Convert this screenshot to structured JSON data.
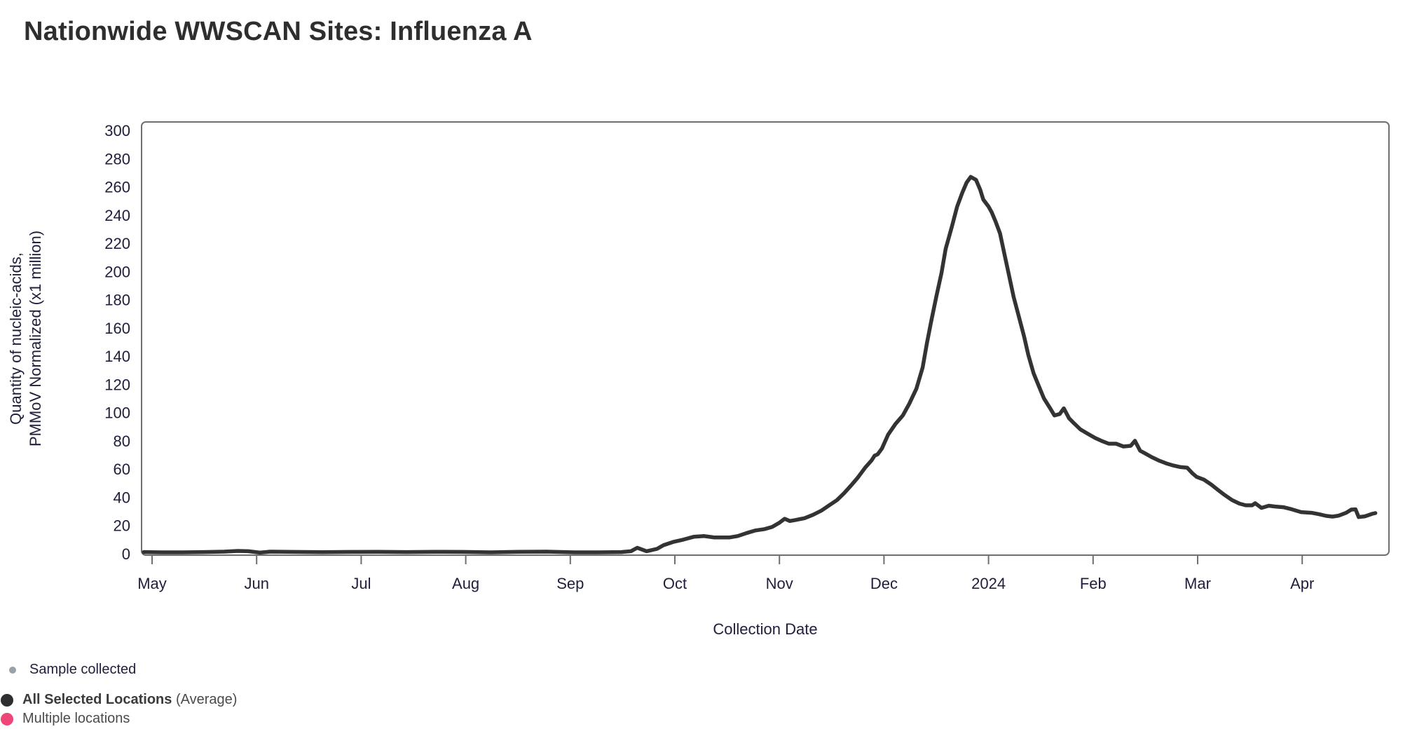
{
  "title": "Nationwide WWSCAN Sites: Influenza A",
  "chart_data": {
    "type": "line",
    "title": "Nationwide WWSCAN Sites: Influenza A",
    "xlabel": "Collection Date",
    "ylabel_lines": [
      "Quantity of nucleic-acids,",
      "PMMoV Normalized (x1 million)"
    ],
    "x_ticks": [
      "May",
      "Jun",
      "Jul",
      "Aug",
      "Sep",
      "Oct",
      "Nov",
      "Dec",
      "2024",
      "Feb",
      "Mar",
      "Apr"
    ],
    "y_ticks": [
      0,
      20,
      40,
      60,
      80,
      100,
      120,
      140,
      160,
      180,
      200,
      220,
      240,
      260,
      280,
      300
    ],
    "ylim": [
      0,
      300
    ],
    "x_note": "x values are fractional month offsets: 0 = May tick, 11 = Apr tick, '2024' tick (index 8) = January",
    "grid": false,
    "legend_position": "bottom-left",
    "series": [
      {
        "name": "All Selected Locations (Average)",
        "color": "#333333",
        "points": [
          [
            -0.08,
            1.2
          ],
          [
            0.09,
            1.0
          ],
          [
            0.29,
            1.0
          ],
          [
            0.49,
            1.2
          ],
          [
            0.69,
            1.5
          ],
          [
            0.82,
            2.0
          ],
          [
            0.92,
            1.8
          ],
          [
            1.03,
            0.8
          ],
          [
            1.13,
            1.5
          ],
          [
            1.36,
            1.3
          ],
          [
            1.63,
            1.1
          ],
          [
            1.9,
            1.3
          ],
          [
            2.16,
            1.4
          ],
          [
            2.43,
            1.2
          ],
          [
            2.7,
            1.4
          ],
          [
            2.97,
            1.3
          ],
          [
            3.24,
            1.0
          ],
          [
            3.5,
            1.4
          ],
          [
            3.77,
            1.5
          ],
          [
            4.04,
            1.0
          ],
          [
            4.26,
            1.0
          ],
          [
            4.49,
            1.2
          ],
          [
            4.58,
            1.8
          ],
          [
            4.64,
            4.2
          ],
          [
            4.73,
            1.8
          ],
          [
            4.83,
            3.5
          ],
          [
            4.89,
            6.0
          ],
          [
            4.99,
            8.5
          ],
          [
            5.08,
            10.0
          ],
          [
            5.18,
            12.0
          ],
          [
            5.28,
            12.5
          ],
          [
            5.38,
            11.5
          ],
          [
            5.52,
            11.5
          ],
          [
            5.6,
            12.5
          ],
          [
            5.68,
            14.5
          ],
          [
            5.77,
            16.5
          ],
          [
            5.86,
            17.5
          ],
          [
            5.93,
            19.0
          ],
          [
            6.0,
            22.0
          ],
          [
            6.05,
            24.8
          ],
          [
            6.1,
            23.2
          ],
          [
            6.16,
            24.0
          ],
          [
            6.24,
            25.2
          ],
          [
            6.32,
            27.5
          ],
          [
            6.4,
            30.5
          ],
          [
            6.48,
            34.5
          ],
          [
            6.55,
            38.0
          ],
          [
            6.62,
            43.0
          ],
          [
            6.68,
            48.0
          ],
          [
            6.75,
            54.0
          ],
          [
            6.82,
            61.0
          ],
          [
            6.88,
            66.0
          ],
          [
            6.91,
            69.5
          ],
          [
            6.94,
            70.5
          ],
          [
            6.98,
            74.5
          ],
          [
            7.04,
            84.5
          ],
          [
            7.11,
            92.0
          ],
          [
            7.18,
            98.0
          ],
          [
            7.24,
            106
          ],
          [
            7.31,
            117
          ],
          [
            7.37,
            132
          ],
          [
            7.41,
            149
          ],
          [
            7.45,
            164
          ],
          [
            7.5,
            182
          ],
          [
            7.55,
            199
          ],
          [
            7.59,
            216
          ],
          [
            7.65,
            232
          ],
          [
            7.7,
            246
          ],
          [
            7.75,
            256
          ],
          [
            7.79,
            263
          ],
          [
            7.83,
            267
          ],
          [
            7.88,
            265
          ],
          [
            7.92,
            258
          ],
          [
            7.95,
            251
          ],
          [
            8.0,
            246
          ],
          [
            8.03,
            242
          ],
          [
            8.07,
            235
          ],
          [
            8.11,
            227
          ],
          [
            8.15,
            213
          ],
          [
            8.2,
            196
          ],
          [
            8.24,
            182
          ],
          [
            8.29,
            168
          ],
          [
            8.34,
            154
          ],
          [
            8.38,
            141
          ],
          [
            8.43,
            128
          ],
          [
            8.48,
            119
          ],
          [
            8.53,
            110
          ],
          [
            8.59,
            103
          ],
          [
            8.63,
            98
          ],
          [
            8.68,
            99
          ],
          [
            8.72,
            103
          ],
          [
            8.77,
            96
          ],
          [
            8.81,
            93
          ],
          [
            8.88,
            88
          ],
          [
            8.95,
            85
          ],
          [
            9.02,
            82
          ],
          [
            9.08,
            80
          ],
          [
            9.15,
            78
          ],
          [
            9.22,
            78
          ],
          [
            9.29,
            76
          ],
          [
            9.36,
            76.5
          ],
          [
            9.4,
            80
          ],
          [
            9.45,
            73
          ],
          [
            9.5,
            71
          ],
          [
            9.56,
            68.5
          ],
          [
            9.63,
            66
          ],
          [
            9.7,
            64
          ],
          [
            9.77,
            62.5
          ],
          [
            9.83,
            61.5
          ],
          [
            9.9,
            61
          ],
          [
            9.95,
            57
          ],
          [
            9.99,
            54.5
          ],
          [
            10.06,
            52.5
          ],
          [
            10.13,
            49
          ],
          [
            10.19,
            45.5
          ],
          [
            10.26,
            41.5
          ],
          [
            10.33,
            38
          ],
          [
            10.4,
            35.5
          ],
          [
            10.46,
            34.3
          ],
          [
            10.52,
            34.3
          ],
          [
            10.55,
            35.8
          ],
          [
            10.61,
            32.5
          ],
          [
            10.68,
            34
          ],
          [
            10.74,
            33.5
          ],
          [
            10.82,
            33
          ],
          [
            10.9,
            31.5
          ],
          [
            10.99,
            29.5
          ],
          [
            11.09,
            29
          ],
          [
            11.16,
            28
          ],
          [
            11.23,
            26.8
          ],
          [
            11.29,
            26.3
          ],
          [
            11.35,
            27
          ],
          [
            11.42,
            29
          ],
          [
            11.47,
            31.3
          ],
          [
            11.51,
            31.5
          ],
          [
            11.54,
            26
          ],
          [
            11.6,
            26.5
          ],
          [
            11.67,
            28.3
          ],
          [
            11.7,
            28.8
          ]
        ]
      }
    ],
    "peak_value_approx": 267,
    "colors": {
      "line": "#333333",
      "plot_border": "#6f6f6f",
      "axis_text": "#20203e"
    }
  },
  "legend": [
    {
      "label": "Sample collected",
      "color": "#9aa1ac"
    },
    {
      "label": "All Selected Locations",
      "suffix": " (Average)",
      "color": "#2d2d32"
    },
    {
      "label": "Multiple locations",
      "color": "#ee4679"
    }
  ]
}
